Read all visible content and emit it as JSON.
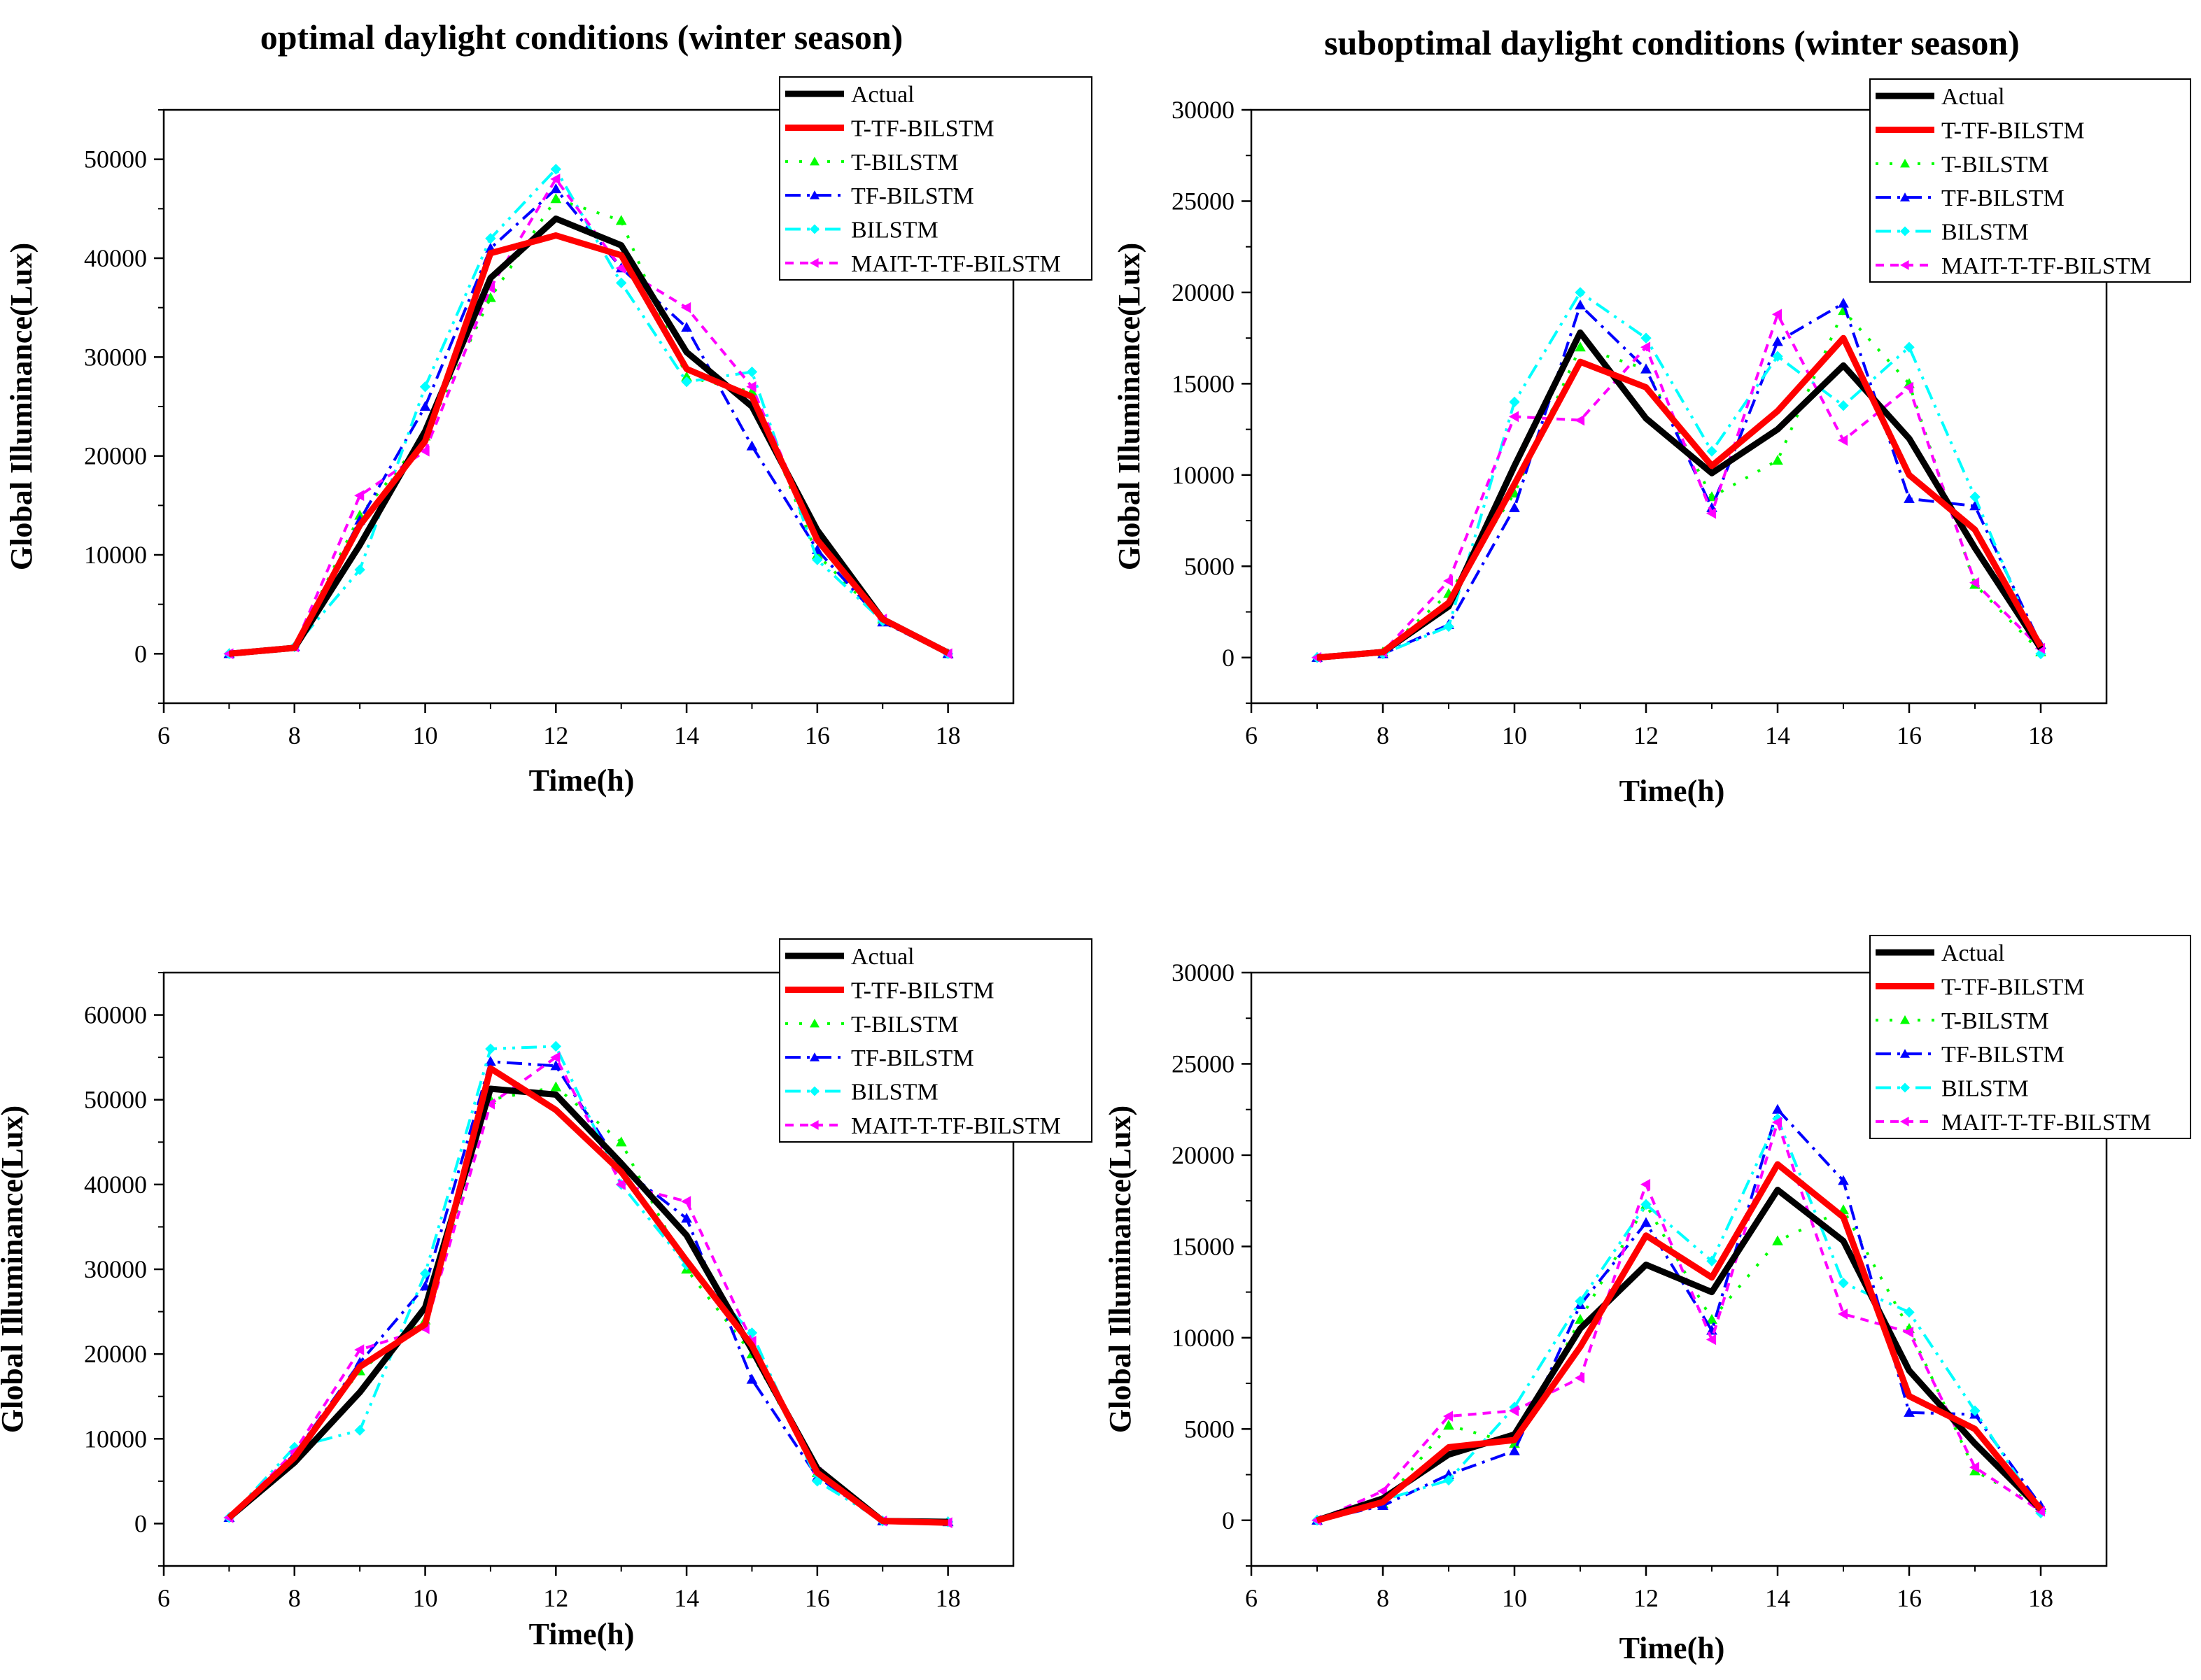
{
  "chart_data": [
    {
      "type": "line",
      "title": "optimal daylight conditions (winter season)",
      "xlabel": "Time(h)",
      "ylabel": "Global Illuminance(Lux)",
      "xlim": [
        6,
        19
      ],
      "ylim": [
        -5000,
        55000
      ],
      "xticks": [
        6,
        8,
        10,
        12,
        14,
        16,
        18
      ],
      "yticks": [
        0,
        10000,
        20000,
        30000,
        40000,
        50000
      ],
      "grid": false,
      "legend_position": "top-right",
      "x": [
        7,
        8,
        9,
        10,
        11,
        12,
        13,
        14,
        15,
        16,
        17,
        18
      ],
      "series": [
        {
          "name": "Actual",
          "values": [
            0,
            600,
            11000,
            22500,
            38000,
            44000,
            41300,
            30500,
            25000,
            12500,
            3500,
            100
          ]
        },
        {
          "name": "T-TF-BILSTM",
          "values": [
            0,
            600,
            13000,
            21500,
            40500,
            42300,
            40300,
            28800,
            26000,
            11500,
            3500,
            100
          ]
        },
        {
          "name": "T-BILSTM",
          "values": [
            0,
            700,
            14000,
            22000,
            36000,
            46000,
            43800,
            28000,
            26500,
            10000,
            3500,
            0
          ]
        },
        {
          "name": "TF-BILSTM",
          "values": [
            0,
            700,
            13500,
            25000,
            41000,
            47000,
            39000,
            33000,
            21000,
            10500,
            3200,
            0
          ]
        },
        {
          "name": "BILSTM",
          "values": [
            0,
            700,
            8500,
            27000,
            42000,
            49000,
            37500,
            27500,
            28500,
            9500,
            3300,
            0
          ]
        },
        {
          "name": "MAIT-T-TF-BILSTM",
          "values": [
            0,
            700,
            16000,
            20500,
            37000,
            48000,
            39000,
            35000,
            27000,
            11500,
            3500,
            0
          ]
        }
      ]
    },
    {
      "type": "line",
      "title": "suboptimal daylight conditions (winter season)",
      "xlabel": "Time(h)",
      "ylabel": "Global Illuminance(Lux)",
      "xlim": [
        6,
        19
      ],
      "ylim": [
        -2500,
        30000
      ],
      "xticks": [
        6,
        8,
        10,
        12,
        14,
        16,
        18
      ],
      "yticks": [
        0,
        5000,
        10000,
        15000,
        20000,
        25000,
        30000
      ],
      "grid": false,
      "legend_position": "top-right",
      "x": [
        7,
        8,
        9,
        10,
        11,
        12,
        13,
        14,
        15,
        16,
        17,
        18
      ],
      "series": [
        {
          "name": "Actual",
          "values": [
            0,
            300,
            2800,
            10500,
            17800,
            13100,
            10100,
            12500,
            16000,
            12000,
            6000,
            500
          ]
        },
        {
          "name": "T-TF-BILSTM",
          "values": [
            0,
            300,
            3000,
            9500,
            16200,
            14800,
            10500,
            13500,
            17500,
            10000,
            7000,
            600
          ]
        },
        {
          "name": "T-BILSTM",
          "values": [
            0,
            300,
            3500,
            9000,
            17000,
            15800,
            8800,
            10800,
            19000,
            15000,
            4000,
            300
          ]
        },
        {
          "name": "TF-BILSTM",
          "values": [
            0,
            200,
            1800,
            8200,
            19300,
            15800,
            8200,
            17300,
            19400,
            8700,
            8300,
            700
          ]
        },
        {
          "name": "BILSTM",
          "values": [
            0,
            200,
            1700,
            14000,
            20000,
            17500,
            11300,
            16500,
            13800,
            17000,
            8800,
            200
          ]
        },
        {
          "name": "MAIT-T-TF-BILSTM",
          "values": [
            0,
            300,
            4200,
            13200,
            13000,
            17000,
            7900,
            18800,
            11900,
            14800,
            4100,
            500
          ]
        }
      ]
    },
    {
      "type": "line",
      "title": "",
      "xlabel": "Time(h)",
      "ylabel": "Global Illuminance(Lux)",
      "xlim": [
        6,
        19
      ],
      "ylim": [
        -5000,
        65000
      ],
      "xticks": [
        6,
        8,
        10,
        12,
        14,
        16,
        18
      ],
      "yticks": [
        0,
        10000,
        20000,
        30000,
        40000,
        50000,
        60000
      ],
      "grid": false,
      "legend_position": "top-right",
      "x": [
        7,
        8,
        9,
        10,
        11,
        12,
        13,
        14,
        15,
        16,
        17,
        18
      ],
      "series": [
        {
          "name": "Actual",
          "values": [
            700,
            7200,
            15500,
            25500,
            51300,
            50600,
            42500,
            34000,
            20500,
            6500,
            300,
            200
          ]
        },
        {
          "name": "T-TF-BILSTM",
          "values": [
            700,
            7800,
            18500,
            23500,
            53700,
            48800,
            41500,
            31000,
            21000,
            6000,
            300,
            100
          ]
        },
        {
          "name": "T-BILSTM",
          "values": [
            700,
            8000,
            18000,
            24000,
            50000,
            51500,
            45000,
            30000,
            20000,
            6000,
            300,
            200
          ]
        },
        {
          "name": "TF-BILSTM",
          "values": [
            700,
            8200,
            19000,
            28000,
            54500,
            54000,
            42000,
            36000,
            17000,
            5500,
            300,
            200
          ]
        },
        {
          "name": "BILSTM",
          "values": [
            700,
            9000,
            11000,
            29500,
            56000,
            56300,
            40000,
            30500,
            22500,
            5000,
            300,
            200
          ]
        },
        {
          "name": "MAIT-T-TF-BILSTM",
          "values": [
            700,
            8500,
            20500,
            23000,
            49500,
            55000,
            40000,
            38000,
            21500,
            6000,
            300,
            100
          ]
        }
      ]
    },
    {
      "type": "line",
      "title": "",
      "xlabel": "Time(h)",
      "ylabel": "Global Illuminance(Lux)",
      "xlim": [
        6,
        19
      ],
      "ylim": [
        -2500,
        30000
      ],
      "xticks": [
        6,
        8,
        10,
        12,
        14,
        16,
        18
      ],
      "yticks": [
        0,
        5000,
        10000,
        15000,
        20000,
        25000,
        30000
      ],
      "grid": false,
      "legend_position": "top-right",
      "x": [
        7,
        8,
        9,
        10,
        11,
        12,
        13,
        14,
        15,
        16,
        17,
        18
      ],
      "series": [
        {
          "name": "Actual",
          "values": [
            0,
            1200,
            3600,
            4700,
            10500,
            14000,
            12500,
            18100,
            15300,
            8200,
            4200,
            600
          ]
        },
        {
          "name": "T-TF-BILSTM",
          "values": [
            0,
            1000,
            4000,
            4400,
            9500,
            15600,
            13300,
            19500,
            16600,
            6800,
            5000,
            600
          ]
        },
        {
          "name": "T-BILSTM",
          "values": [
            0,
            900,
            5200,
            4200,
            11000,
            17300,
            11000,
            15300,
            17000,
            10500,
            2700,
            700
          ]
        },
        {
          "name": "TF-BILSTM",
          "values": [
            0,
            800,
            2500,
            3800,
            11800,
            16300,
            10400,
            22500,
            18600,
            5900,
            5800,
            800
          ]
        },
        {
          "name": "BILSTM",
          "values": [
            0,
            1100,
            2200,
            6200,
            12000,
            17300,
            14200,
            22000,
            13000,
            11400,
            6000,
            400
          ]
        },
        {
          "name": "MAIT-T-TF-BILSTM",
          "values": [
            0,
            1600,
            5700,
            6000,
            7800,
            18400,
            9900,
            21800,
            11300,
            10300,
            2900,
            500
          ]
        }
      ]
    }
  ],
  "series_styles": [
    {
      "color": "#000000",
      "dash": "",
      "width": 9,
      "marker": "none"
    },
    {
      "color": "#ff0000",
      "dash": "",
      "width": 9,
      "marker": "none"
    },
    {
      "color": "#00ff00",
      "dash": "4,16",
      "width": 4,
      "marker": "triangle"
    },
    {
      "color": "#0000ff",
      "dash": "22,9,4,9",
      "width": 4,
      "marker": "triangle"
    },
    {
      "color": "#00ffff",
      "dash": "22,9,4,9,4,9",
      "width": 4,
      "marker": "diamond"
    },
    {
      "color": "#ff00ff",
      "dash": "12,9",
      "width": 4,
      "marker": "triangle-left"
    }
  ]
}
